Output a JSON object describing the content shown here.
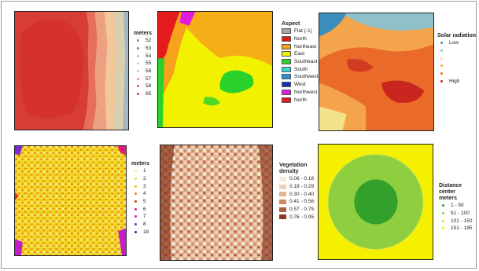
{
  "panels": {
    "elevation": {
      "title": "meters",
      "items": [
        {
          "label": "52",
          "color": "#8a8a8a"
        },
        {
          "label": "53",
          "color": "#5a7fa8"
        },
        {
          "label": "54",
          "color": "#c9b79a"
        },
        {
          "label": "55",
          "color": "#e8d6a8"
        },
        {
          "label": "56",
          "color": "#f6c495"
        },
        {
          "label": "57",
          "color": "#ef8f6b"
        },
        {
          "label": "58",
          "color": "#e25b4e"
        },
        {
          "label": "65",
          "color": "#d23b3b"
        }
      ]
    },
    "aspect": {
      "title": "Aspect",
      "items": [
        {
          "label": "Flat (-1)",
          "color": "#a6a6a6"
        },
        {
          "label": "North",
          "color": "#e41a1c"
        },
        {
          "label": "Northeast",
          "color": "#f7a21b"
        },
        {
          "label": "East",
          "color": "#f2f200"
        },
        {
          "label": "Southeast",
          "color": "#2bd12b"
        },
        {
          "label": "South",
          "color": "#37d6d6"
        },
        {
          "label": "Southwest",
          "color": "#2b8fe0"
        },
        {
          "label": "West",
          "color": "#1a2fb8"
        },
        {
          "label": "Northwest",
          "color": "#e11ae0"
        },
        {
          "label": "North",
          "color": "#e41a1c"
        }
      ]
    },
    "solar": {
      "title": "Solar radiation",
      "items": [
        {
          "label": "Low",
          "color": "#3c8fbd"
        },
        {
          "label": "",
          "color": "#8ec1c9"
        },
        {
          "label": "",
          "color": "#f2e28a"
        },
        {
          "label": "",
          "color": "#f4a44a"
        },
        {
          "label": "",
          "color": "#ea6a2a"
        },
        {
          "label": "High",
          "color": "#c9261f"
        }
      ]
    },
    "depth": {
      "title": "meters",
      "items": [
        {
          "label": "1",
          "color": "#f5f0a0"
        },
        {
          "label": "2",
          "color": "#f2dc2f"
        },
        {
          "label": "3",
          "color": "#f5c400"
        },
        {
          "label": "4",
          "color": "#e88a12"
        },
        {
          "label": "5",
          "color": "#e0301e"
        },
        {
          "label": "6",
          "color": "#e01a7a"
        },
        {
          "label": "7",
          "color": "#c21fc9"
        },
        {
          "label": "8",
          "color": "#7a2ad0"
        },
        {
          "label": "18",
          "color": "#1f2a8a"
        }
      ]
    },
    "vegetation": {
      "title_line1": "Vegetation",
      "title_line2": "density",
      "items": [
        {
          "label": "0.06 - 0.18",
          "color": "#f7eadb"
        },
        {
          "label": "0.19 - 0.29",
          "color": "#f0d2b8"
        },
        {
          "label": "0.30 - 0.40",
          "color": "#e2b291"
        },
        {
          "label": "0.41 - 0.56",
          "color": "#cc8a62"
        },
        {
          "label": "0.57 - 0.75",
          "color": "#ad5f3c"
        },
        {
          "label": "0.76 - 0.95",
          "color": "#8a3a22"
        }
      ]
    },
    "distance": {
      "title_line1": "Distance center",
      "title_line2": "meters",
      "items": [
        {
          "label": "1 - 50",
          "color": "#33a02c"
        },
        {
          "label": "51 - 100",
          "color": "#8fcf3f"
        },
        {
          "label": "101 - 150",
          "color": "#d8e84a"
        },
        {
          "label": "151 - 185",
          "color": "#f5f000"
        }
      ]
    }
  }
}
